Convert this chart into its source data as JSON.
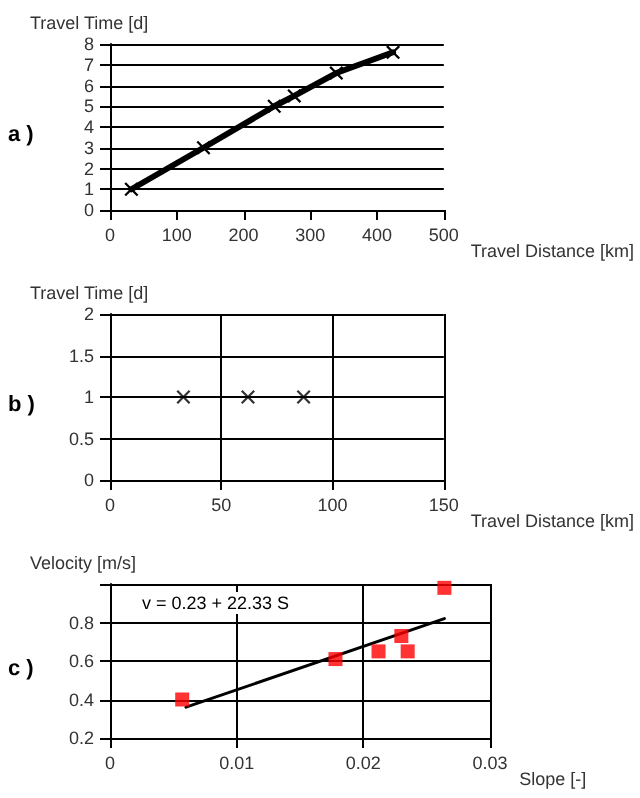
{
  "chart_data": [
    {
      "type": "line",
      "ylabel": "Travel Time [d]",
      "xlabel": "Travel Distance [km]",
      "annotations": [
        "a )"
      ],
      "xlim": [
        0,
        500
      ],
      "xticks": [
        0,
        100,
        200,
        300,
        400,
        500
      ],
      "ylim": [
        0,
        8
      ],
      "yticks": [
        0,
        1,
        2,
        3,
        4,
        5,
        6,
        7,
        8
      ],
      "grid": "y",
      "marker": "cross",
      "line_style": "solid",
      "series": [
        {
          "color": "#000000",
          "x": [
            32,
            140,
            246,
            276,
            339,
            424
          ],
          "values": [
            1,
            3,
            5,
            5.5,
            6.6,
            7.6
          ]
        }
      ]
    },
    {
      "type": "scatter",
      "ylabel": "Travel Time [d]",
      "xlabel": "Travel Distance [km]",
      "annotations": [
        "b )"
      ],
      "xlim": [
        0,
        150
      ],
      "xticks": [
        0,
        50,
        100,
        150
      ],
      "ylim": [
        0,
        2
      ],
      "yticks": [
        0,
        0.5,
        1,
        1.5,
        2
      ],
      "grid": true,
      "marker": "cross",
      "series": [
        {
          "color": "#000000",
          "x": [
            33,
            62,
            87
          ],
          "values": [
            1,
            1,
            1
          ]
        }
      ]
    },
    {
      "type": "scatter",
      "ylabel": "Velocity [m/s]",
      "xlabel": "Slope [-]",
      "annotations": [
        "c )",
        "v = 0.23 + 22.33 S"
      ],
      "xlim": [
        0,
        0.03
      ],
      "xticks": [
        0,
        0.01,
        0.02,
        0.03
      ],
      "ylim": [
        0.2,
        1.0
      ],
      "yticks": [
        0.2,
        0.4,
        0.6,
        0.8,
        {
          "value": 1.0,
          "label": null
        }
      ],
      "grid": true,
      "marker": "square",
      "series": [
        {
          "color": "#ff0000",
          "x": [
            0.0057,
            0.0178,
            0.0212,
            0.023,
            0.0235,
            0.0264
          ],
          "values": [
            0.4,
            0.61,
            0.65,
            0.73,
            0.65,
            0.98
          ]
        },
        {
          "type": "line",
          "color": "#000000",
          "marker": "none",
          "x": [
            0.006,
            0.0264
          ],
          "values": [
            0.36,
            0.82
          ]
        }
      ]
    }
  ]
}
